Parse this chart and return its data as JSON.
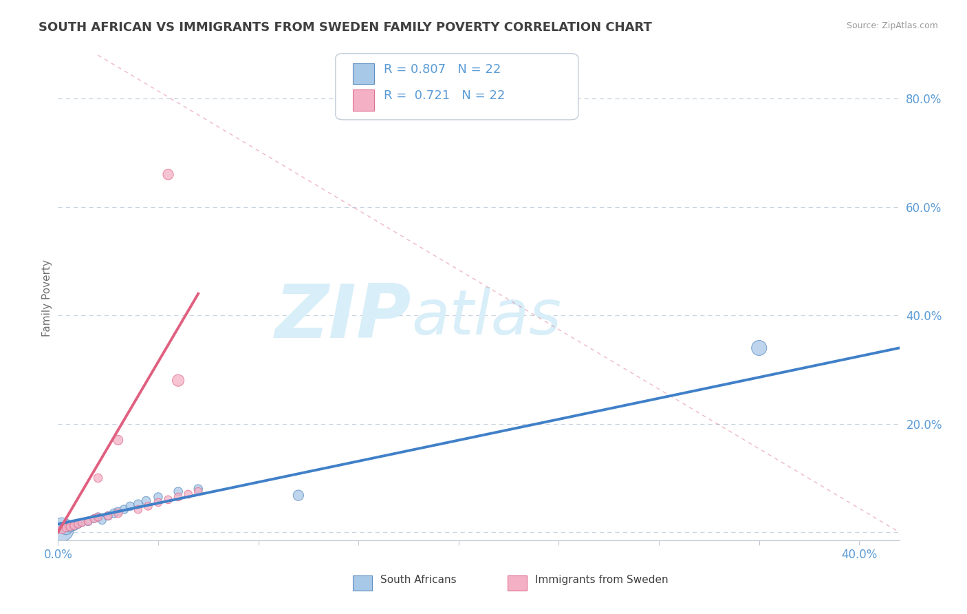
{
  "title": "SOUTH AFRICAN VS IMMIGRANTS FROM SWEDEN FAMILY POVERTY CORRELATION CHART",
  "source": "Source: ZipAtlas.com",
  "ylabel": "Family Poverty",
  "xlim": [
    0.0,
    0.42
  ],
  "ylim": [
    -0.015,
    0.88
  ],
  "blue_R": "0.807",
  "blue_N": "22",
  "pink_R": "0.721",
  "pink_N": "22",
  "blue_color": "#a8c8e8",
  "pink_color": "#f4b0c4",
  "blue_edge_color": "#6090c0",
  "pink_edge_color": "#e07090",
  "blue_line_color": "#4080c8",
  "pink_line_color": "#e06080",
  "title_color": "#404040",
  "legend_text_color": "#5b9bd5",
  "watermark_color": "#d8eef8",
  "grid_color": "#c8d4e0",
  "right_ytick_labels": [
    "",
    "20.0%",
    "40.0%",
    "60.0%",
    "80.0%"
  ],
  "right_yticks": [
    0.0,
    0.2,
    0.4,
    0.6,
    0.8
  ],
  "blue_scatter_x": [
    0.002,
    0.004,
    0.006,
    0.008,
    0.01,
    0.012,
    0.015,
    0.018,
    0.02,
    0.022,
    0.025,
    0.028,
    0.03,
    0.033,
    0.036,
    0.04,
    0.044,
    0.05,
    0.06,
    0.07,
    0.12,
    0.35
  ],
  "blue_scatter_y": [
    0.005,
    0.008,
    0.01,
    0.012,
    0.015,
    0.018,
    0.02,
    0.025,
    0.028,
    0.022,
    0.03,
    0.035,
    0.038,
    0.042,
    0.048,
    0.052,
    0.058,
    0.065,
    0.075,
    0.08,
    0.068,
    0.34
  ],
  "blue_scatter_size": [
    600,
    200,
    120,
    100,
    80,
    70,
    80,
    70,
    80,
    70,
    80,
    90,
    80,
    80,
    80,
    80,
    80,
    80,
    80,
    80,
    120,
    250
  ],
  "pink_scatter_x": [
    0.002,
    0.004,
    0.006,
    0.008,
    0.01,
    0.012,
    0.015,
    0.018,
    0.02,
    0.025,
    0.03,
    0.04,
    0.045,
    0.05,
    0.055,
    0.06,
    0.065,
    0.07,
    0.02,
    0.03,
    0.06,
    0.055
  ],
  "pink_scatter_y": [
    0.005,
    0.008,
    0.01,
    0.012,
    0.015,
    0.018,
    0.02,
    0.025,
    0.028,
    0.03,
    0.035,
    0.042,
    0.048,
    0.055,
    0.06,
    0.065,
    0.07,
    0.075,
    0.1,
    0.17,
    0.28,
    0.66
  ],
  "pink_scatter_size": [
    80,
    70,
    70,
    70,
    70,
    70,
    70,
    70,
    70,
    70,
    80,
    70,
    70,
    70,
    70,
    70,
    70,
    70,
    80,
    100,
    150,
    120
  ],
  "blue_trend_x": [
    0.0,
    0.42
  ],
  "blue_trend_y": [
    0.015,
    0.34
  ],
  "pink_trend_x": [
    0.0,
    0.07
  ],
  "pink_trend_y": [
    0.0,
    0.44
  ],
  "dashed_line_x": [
    0.02,
    0.42
  ],
  "dashed_line_y": [
    0.88,
    0.0
  ]
}
